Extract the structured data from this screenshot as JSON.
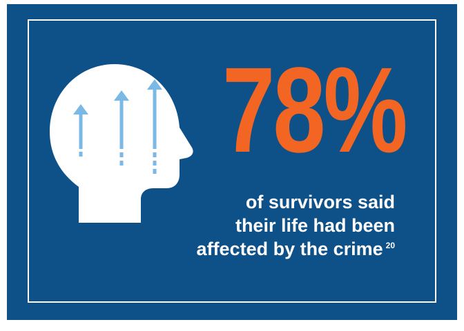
{
  "stat": {
    "value": "78%",
    "caption_lines": [
      "of survivors said",
      "their life had been",
      "affected by the crime"
    ],
    "footnote": "20"
  },
  "colors": {
    "background": "#0e5189",
    "accent": "#f26522",
    "arrows": "#7ab8e6",
    "text": "#ffffff"
  },
  "icons": {
    "head": "head-with-rising-arrows-icon"
  }
}
